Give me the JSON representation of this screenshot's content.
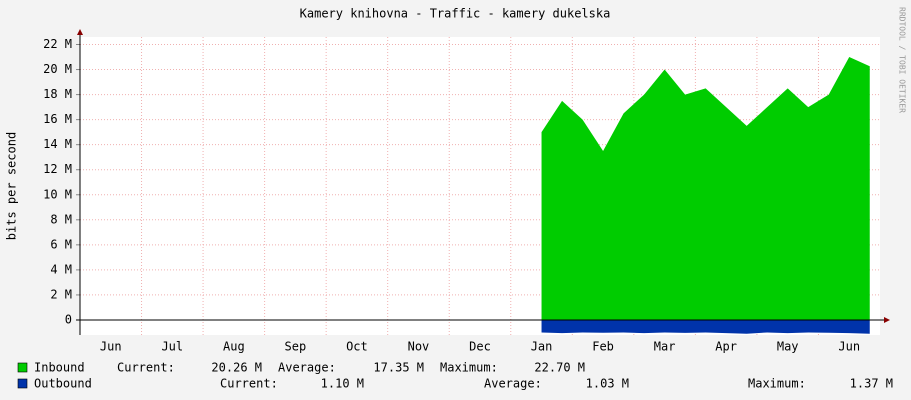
{
  "chart_data": {
    "type": "area",
    "title": "Kamery knihovna - Traffic - kamery dukelska",
    "y_label": "bits per second",
    "watermark": "RRDTOOL / TOBI OETIKER",
    "categories": [
      null,
      "Jun",
      null,
      null,
      "Jul",
      null,
      null,
      "Aug",
      null,
      null,
      "Sep",
      null,
      null,
      "Oct",
      null,
      null,
      "Nov",
      null,
      null,
      "Dec",
      null,
      null,
      "Jan",
      null,
      null,
      "Feb",
      null,
      null,
      "Mar",
      null,
      null,
      "Apr",
      null,
      null,
      "May",
      null,
      null,
      "Jun",
      null
    ],
    "ylim": [
      -1.2,
      22.6
    ],
    "yticks": [
      0,
      {
        "value": 2,
        "label": "2 M"
      },
      {
        "value": 4,
        "label": "4 M"
      },
      {
        "value": 6,
        "label": "6 M"
      },
      {
        "value": 8,
        "label": "8 M"
      },
      {
        "value": 10,
        "label": "10 M"
      },
      {
        "value": 12,
        "label": "12 M"
      },
      {
        "value": 14,
        "label": "14 M"
      },
      {
        "value": 16,
        "label": "16 M"
      },
      {
        "value": 18,
        "label": "18 M"
      },
      {
        "value": 20,
        "label": "20 M"
      },
      {
        "value": 22,
        "label": "22 M"
      }
    ],
    "grid": true,
    "series": [
      {
        "name": "Inbound",
        "color": "#00cc00",
        "values": [
          null,
          null,
          null,
          null,
          null,
          null,
          null,
          null,
          null,
          null,
          null,
          null,
          null,
          null,
          null,
          null,
          null,
          null,
          null,
          null,
          null,
          null,
          15,
          17.5,
          16,
          13.5,
          16.5,
          18,
          20,
          18,
          18.5,
          17,
          15.5,
          17,
          18.5,
          17,
          18,
          21,
          20.26
        ],
        "stats": [
          {
            "label": "Current:",
            "value": "20.26 M"
          },
          {
            "label": "Average:",
            "value": "17.35 M"
          },
          {
            "label": "Maximum:",
            "value": "22.70 M"
          }
        ]
      },
      {
        "name": "Outbound",
        "color": "#0033aa",
        "values": [
          null,
          null,
          null,
          null,
          null,
          null,
          null,
          null,
          null,
          null,
          null,
          null,
          null,
          null,
          null,
          null,
          null,
          null,
          null,
          null,
          null,
          null,
          -1.0,
          -1.05,
          -1.0,
          -1.02,
          -1.0,
          -1.05,
          -1.0,
          -1.03,
          -1.0,
          -1.05,
          -1.1,
          -1.0,
          -1.05,
          -1.0,
          -1.02,
          -1.05,
          -1.1
        ],
        "stats": [
          {
            "label": "Current:",
            "value": "1.10 M"
          },
          {
            "label": "Average:",
            "value": "1.03 M"
          },
          {
            "label": "Maximum:",
            "value": "1.37 M"
          }
        ]
      }
    ]
  }
}
